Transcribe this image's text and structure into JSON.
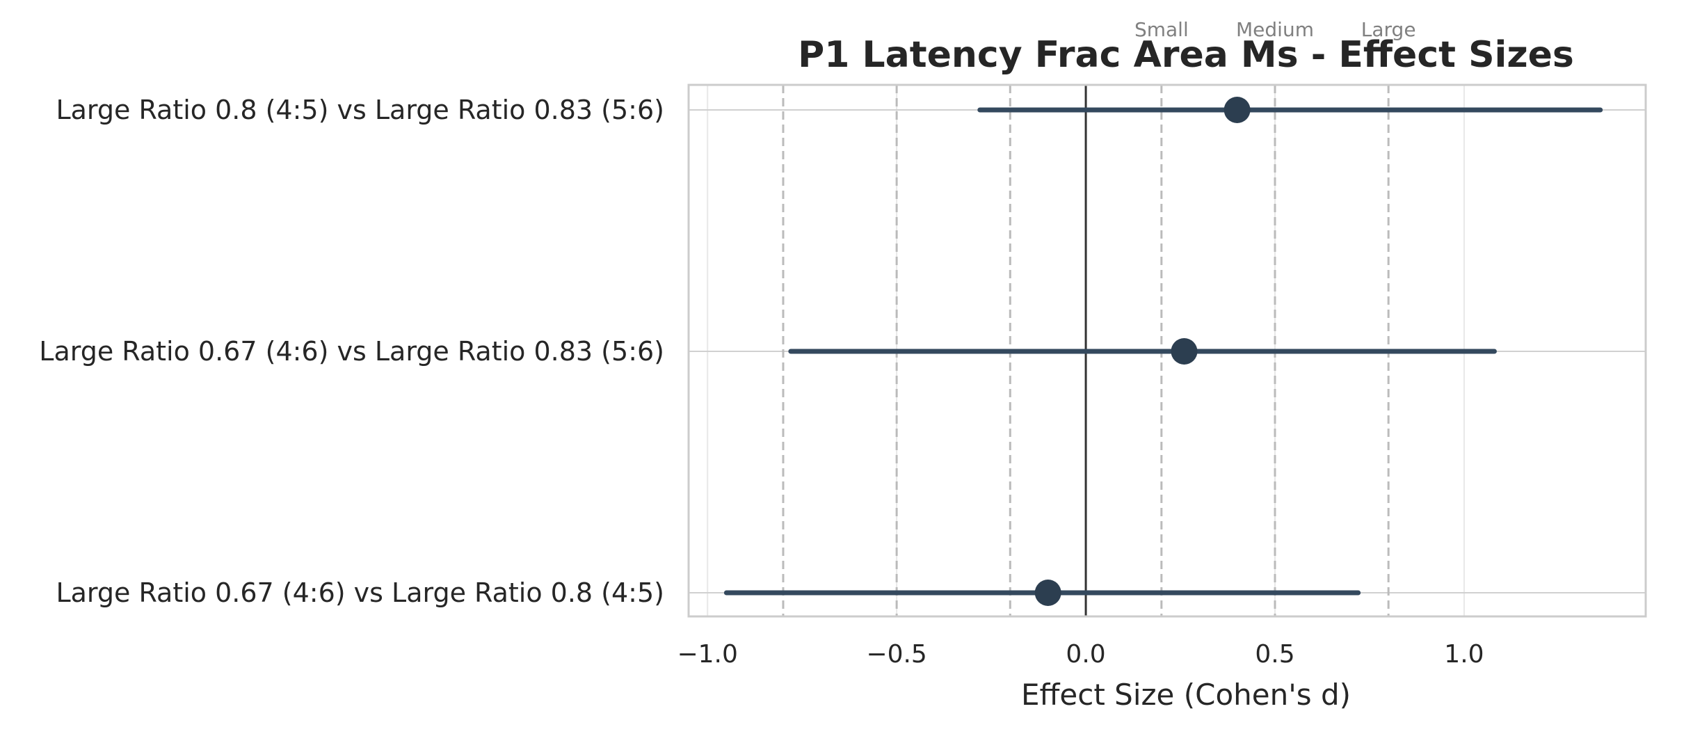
{
  "chart_data": {
    "type": "forest",
    "title": "P1 Latency Frac Area Ms - Effect Sizes",
    "xlabel": "Effect Size (Cohen's d)",
    "xlim": [
      -1.05,
      1.48
    ],
    "xticks": [
      -1.0,
      -0.5,
      0.0,
      0.5,
      1.0
    ],
    "xtick_labels": [
      "−1.0",
      "−0.5",
      "0.0",
      "0.5",
      "1.0"
    ],
    "comparisons": [
      {
        "label": "Large Ratio 0.8 (4:5) vs Large Ratio 0.83 (5:6)",
        "d": 0.4,
        "ci_low": -0.28,
        "ci_high": 1.36
      },
      {
        "label": "Large Ratio 0.67 (4:6) vs Large Ratio 0.83 (5:6)",
        "d": 0.26,
        "ci_low": -0.78,
        "ci_high": 1.08
      },
      {
        "label": "Large Ratio 0.67 (4:6) vs Large Ratio 0.8 (4:5)",
        "d": -0.1,
        "ci_low": -0.95,
        "ci_high": 0.72
      }
    ],
    "thresholds": [
      -0.8,
      -0.5,
      -0.2,
      0.2,
      0.5,
      0.8
    ],
    "threshold_labels": [
      {
        "value": 0.2,
        "text": "Small"
      },
      {
        "value": 0.5,
        "text": "Medium"
      },
      {
        "value": 0.8,
        "text": "Large"
      }
    ],
    "reference_line": 0.0,
    "grid": true,
    "colors": {
      "marker": "#2c3e50",
      "ci_line": "#34495e",
      "threshold": "#bbbbbb",
      "reference": "#333333",
      "grid": "#e8e8e8",
      "frame": "#cccccc"
    }
  }
}
